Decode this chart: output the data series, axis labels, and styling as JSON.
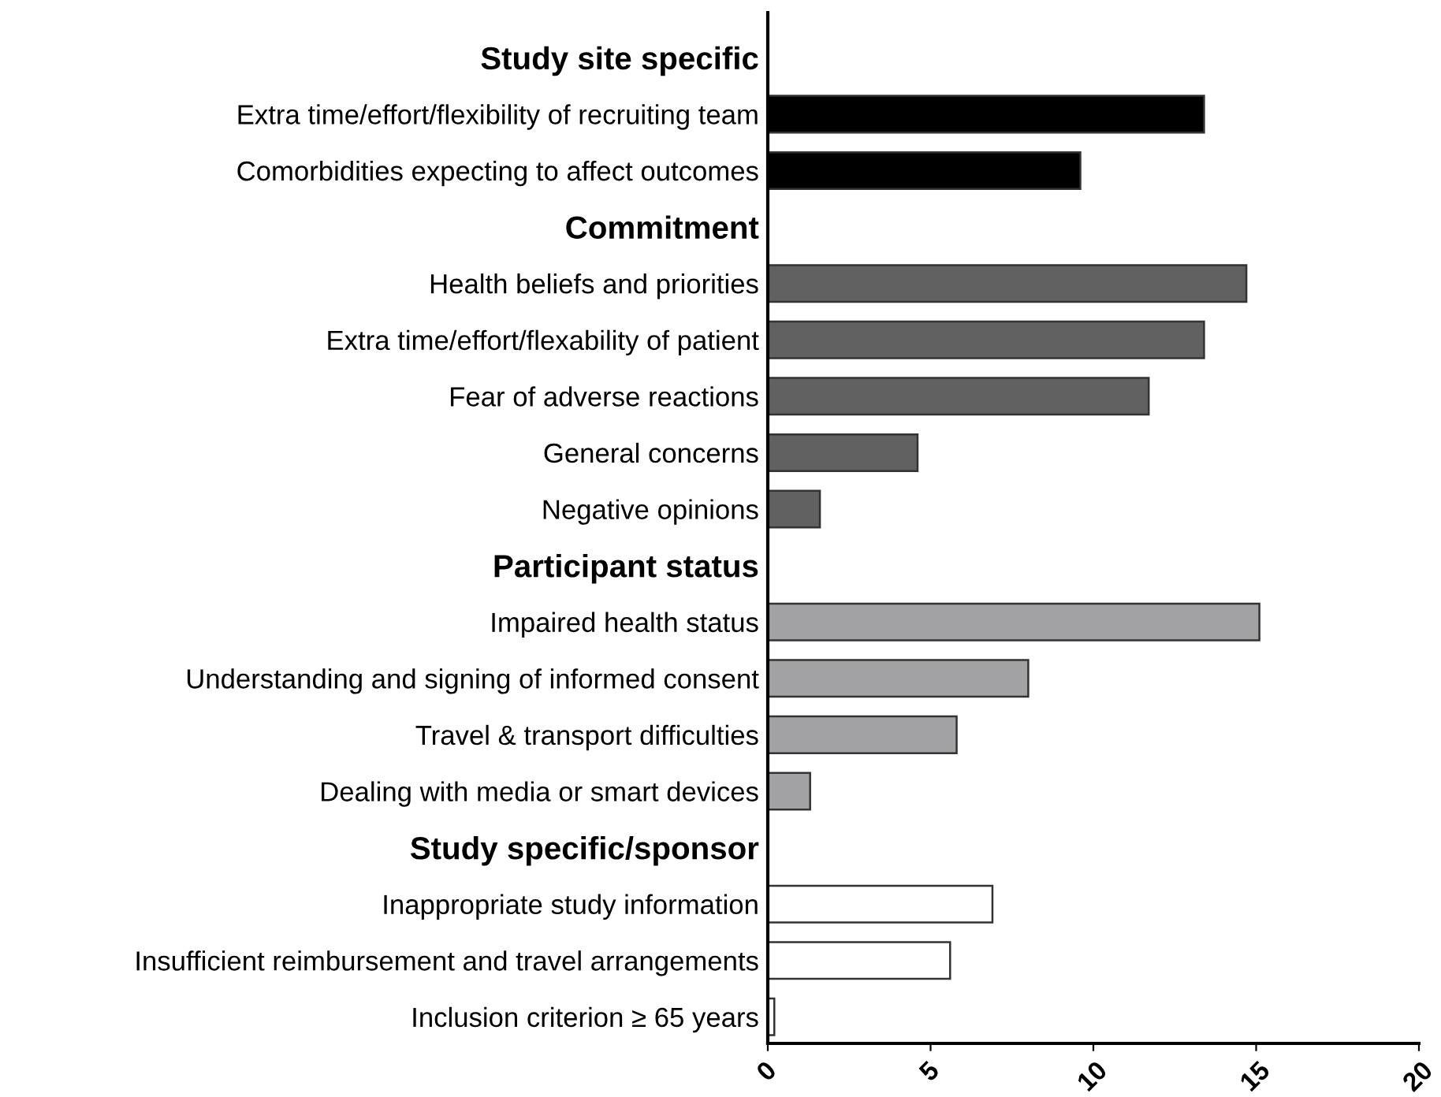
{
  "chart_data": {
    "type": "bar",
    "orientation": "horizontal",
    "categories": [
      "Study site specific",
      "Extra time/effort/flexibility of recruiting team",
      "Comorbidities expecting to affect outcomes",
      "Commitment",
      "Health beliefs and priorities",
      "Extra time/effort/flexability of patient",
      "Fear of adverse reactions",
      "General concerns",
      "Negative opinions",
      "Participant status",
      "Impaired health status",
      "Understanding and signing of informed consent",
      "Travel & transport difficulties",
      "Dealing with media or smart devices",
      "Study specific/sponsor",
      "Inappropriate study information",
      "Insufficient reimbursement and travel arrangements",
      "Inclusion criterion ≥ 65 years"
    ],
    "values": [
      null,
      13.4,
      9.6,
      null,
      14.7,
      13.4,
      11.7,
      4.6,
      1.6,
      null,
      15.1,
      8.0,
      5.8,
      1.3,
      null,
      6.9,
      5.6,
      0.2
    ],
    "colors": [
      null,
      "#000000",
      "#000000",
      null,
      "#616161",
      "#616161",
      "#616161",
      "#616161",
      "#616161",
      null,
      "#a2a2a4",
      "#a2a2a4",
      "#a2a2a4",
      "#a2a2a4",
      null,
      "#ffffff",
      "#ffffff",
      "#ffffff"
    ],
    "xlim": [
      0,
      20
    ],
    "xticks": [
      0,
      5,
      10,
      15,
      20
    ],
    "grid": false,
    "legend": false
  }
}
